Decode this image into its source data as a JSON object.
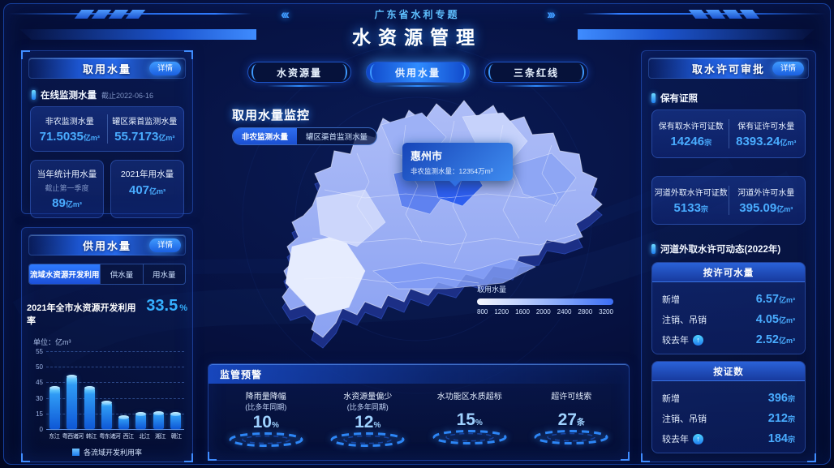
{
  "colors": {
    "accent": "#2f8cff",
    "value_blue": "#49acff",
    "panel_border": "#2c60d8",
    "background": "#061140",
    "highlight_region": "#2e5ff0",
    "warning_value": "#9fd2ff"
  },
  "icons": {
    "chevrons_left": "‹‹‹",
    "chevrons_right": "›››",
    "up_arrow": "↑"
  },
  "header": {
    "subtitle": "广东省水利专题",
    "title": "水资源管理"
  },
  "left_top_panel": {
    "title": "取用水量",
    "detail_button": "详情",
    "section_title": "在线监测水量",
    "section_asof": "截止2022-06-16",
    "online": {
      "left_label": "非农监测水量",
      "left_value": "71.5035",
      "left_unit": "亿m³",
      "right_label": "罐区渠首监测水量",
      "right_value": "55.7173",
      "right_unit": "亿m³"
    },
    "year_cards": [
      {
        "label": "当年统计用水量",
        "sub": "截止第一季度",
        "value": "89",
        "unit": "亿m³"
      },
      {
        "label": "2021年用水量",
        "sub": "",
        "value": "407",
        "unit": "亿m³"
      }
    ]
  },
  "left_bottom_panel": {
    "title": "供用水量",
    "detail_button": "详情",
    "tabs": [
      {
        "label": "流域水资源开发利用",
        "active": true
      },
      {
        "label": "供水量",
        "active": false
      },
      {
        "label": "用水量",
        "active": false
      }
    ],
    "headline_label": "2021年全市水资源开发利用率",
    "headline_value": "33.5",
    "headline_unit": "%",
    "unit_note": "单位：亿m³"
  },
  "chart_data": {
    "type": "bar",
    "title": "各流域开发利用率",
    "categories": [
      "东江",
      "粤西诸河",
      "韩江",
      "粤东诸河",
      "西江",
      "北江",
      "湘江",
      "赣江"
    ],
    "values": [
      40,
      47,
      40,
      26,
      12,
      15,
      16,
      15
    ],
    "yticks": [
      0,
      15,
      30,
      45,
      50,
      55
    ],
    "ylim": [
      0,
      55
    ],
    "ylabel": "亿m³",
    "grid": "dashed",
    "legend": [
      "各流域开发利用率"
    ],
    "legend_position": "bottom"
  },
  "center": {
    "tabs": [
      {
        "label": "水资源量",
        "active": false
      },
      {
        "label": "供用水量",
        "active": true
      },
      {
        "label": "三条红线",
        "active": false
      }
    ],
    "map_title": "取用水量监控",
    "map_tabs": [
      {
        "label": "非农监测水量",
        "active": true
      },
      {
        "label": "罐区渠首监测水量",
        "active": false
      }
    ],
    "tooltip": {
      "city": "惠州市",
      "label": "非农监测水量",
      "value": "12354",
      "unit": "万m³"
    },
    "map_legend": {
      "label": "取用水量",
      "ticks": [
        "800",
        "1200",
        "1600",
        "2000",
        "2400",
        "2800",
        "3200"
      ]
    }
  },
  "warning_panel": {
    "title": "监管预警",
    "items": [
      {
        "label": "降雨量降幅",
        "sub": "(比多年同期)",
        "value": "10",
        "unit": "%"
      },
      {
        "label": "水资源量偏少",
        "sub": "(比多年同期)",
        "value": "12",
        "unit": "%"
      },
      {
        "label": "水功能区水质超标",
        "sub": "",
        "value": "15",
        "unit": "%"
      },
      {
        "label": "超许可线索",
        "sub": "",
        "value": "27",
        "unit": "条"
      }
    ]
  },
  "right_panel": {
    "title": "取水许可审批",
    "detail_button": "详情",
    "section1": "保有证照",
    "license_cards": [
      {
        "left_label": "保有取水许可证数",
        "left_value": "14246",
        "left_unit": "宗",
        "right_label": "保有证许可水量",
        "right_value": "8393.24",
        "right_unit": "亿m³"
      },
      {
        "left_label": "河道外取水许可证数",
        "left_value": "5133",
        "left_unit": "宗",
        "right_label": "河道外许可水量",
        "right_value": "395.09",
        "right_unit": "亿m³"
      }
    ],
    "section2": "河道外取水许可动态(2022年)",
    "dynamic_cards": [
      {
        "title": "按许可水量",
        "rows": [
          {
            "label": "新增",
            "arrow": false,
            "value": "6.57",
            "unit": "亿m³"
          },
          {
            "label": "注销、吊销",
            "arrow": false,
            "value": "4.05",
            "unit": "亿m³"
          },
          {
            "label": "较去年",
            "arrow": true,
            "value": "2.52",
            "unit": "亿m³"
          }
        ]
      },
      {
        "title": "按证数",
        "rows": [
          {
            "label": "新增",
            "arrow": false,
            "value": "396",
            "unit": "宗"
          },
          {
            "label": "注销、吊销",
            "arrow": false,
            "value": "212",
            "unit": "宗"
          },
          {
            "label": "较去年",
            "arrow": true,
            "value": "184",
            "unit": "宗"
          }
        ]
      }
    ]
  }
}
